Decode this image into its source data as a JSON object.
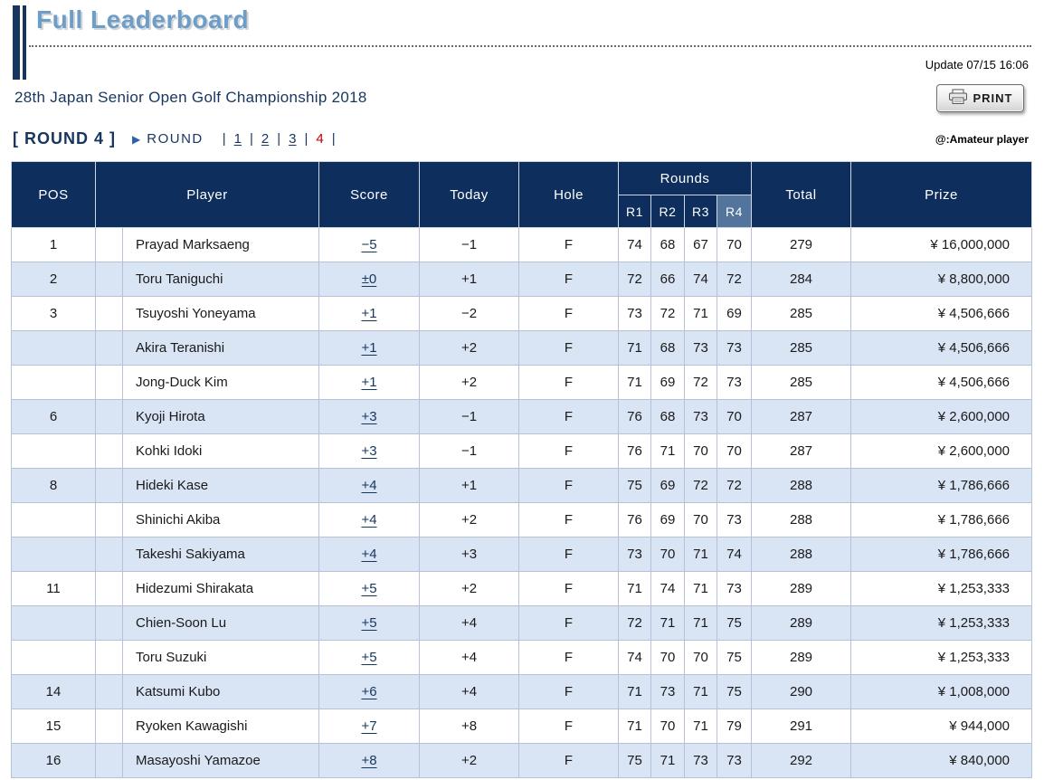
{
  "colors": {
    "navy": "#16365f",
    "header_bg": "#0e2f5e",
    "header_r4_bg": "#53749c",
    "row_alt": "#d9e4f4",
    "current_red": "#c00000",
    "title_blue": "#6d9ec9"
  },
  "page": {
    "title": "Full Leaderboard",
    "update_text": "Update 07/15 16:06",
    "tournament_title": "28th Japan Senior Open Golf Championship 2018",
    "amateur_note": "@:Amateur player"
  },
  "print_button": {
    "label": "PRINT"
  },
  "round_nav": {
    "bracket_label": "[ ROUND 4 ]",
    "arrow": "▶",
    "round_label": "ROUND",
    "separator": "|",
    "links": [
      {
        "label": "1",
        "current": false
      },
      {
        "label": "2",
        "current": false
      },
      {
        "label": "3",
        "current": false
      },
      {
        "label": "4",
        "current": true
      }
    ]
  },
  "table": {
    "headers": {
      "pos": "POS",
      "player": "Player",
      "score": "Score",
      "today": "Today",
      "hole": "Hole",
      "rounds": "Rounds",
      "r1": "R1",
      "r2": "R2",
      "r3": "R3",
      "r4": "R4",
      "total": "Total",
      "prize": "Prize"
    },
    "rows": [
      {
        "pos": "1",
        "player": "Prayad Marksaeng",
        "score": "−5",
        "today": "−1",
        "hole": "F",
        "r1": "74",
        "r2": "68",
        "r3": "67",
        "r4": "70",
        "total": "279",
        "prize": "¥ 16,000,000"
      },
      {
        "pos": "2",
        "player": "Toru Taniguchi",
        "score": "±0",
        "today": "+1",
        "hole": "F",
        "r1": "72",
        "r2": "66",
        "r3": "74",
        "r4": "72",
        "total": "284",
        "prize": "¥ 8,800,000"
      },
      {
        "pos": "3",
        "player": "Tsuyoshi Yoneyama",
        "score": "+1",
        "today": "−2",
        "hole": "F",
        "r1": "73",
        "r2": "72",
        "r3": "71",
        "r4": "69",
        "total": "285",
        "prize": "¥ 4,506,666"
      },
      {
        "pos": "",
        "player": "Akira Teranishi",
        "score": "+1",
        "today": "+2",
        "hole": "F",
        "r1": "71",
        "r2": "68",
        "r3": "73",
        "r4": "73",
        "total": "285",
        "prize": "¥ 4,506,666"
      },
      {
        "pos": "",
        "player": "Jong-Duck Kim",
        "score": "+1",
        "today": "+2",
        "hole": "F",
        "r1": "71",
        "r2": "69",
        "r3": "72",
        "r4": "73",
        "total": "285",
        "prize": "¥ 4,506,666"
      },
      {
        "pos": "6",
        "player": "Kyoji Hirota",
        "score": "+3",
        "today": "−1",
        "hole": "F",
        "r1": "76",
        "r2": "68",
        "r3": "73",
        "r4": "70",
        "total": "287",
        "prize": "¥ 2,600,000"
      },
      {
        "pos": "",
        "player": "Kohki Idoki",
        "score": "+3",
        "today": "−1",
        "hole": "F",
        "r1": "76",
        "r2": "71",
        "r3": "70",
        "r4": "70",
        "total": "287",
        "prize": "¥ 2,600,000"
      },
      {
        "pos": "8",
        "player": "Hideki Kase",
        "score": "+4",
        "today": "+1",
        "hole": "F",
        "r1": "75",
        "r2": "69",
        "r3": "72",
        "r4": "72",
        "total": "288",
        "prize": "¥ 1,786,666"
      },
      {
        "pos": "",
        "player": "Shinichi Akiba",
        "score": "+4",
        "today": "+2",
        "hole": "F",
        "r1": "76",
        "r2": "69",
        "r3": "70",
        "r4": "73",
        "total": "288",
        "prize": "¥ 1,786,666"
      },
      {
        "pos": "",
        "player": "Takeshi Sakiyama",
        "score": "+4",
        "today": "+3",
        "hole": "F",
        "r1": "73",
        "r2": "70",
        "r3": "71",
        "r4": "74",
        "total": "288",
        "prize": "¥ 1,786,666"
      },
      {
        "pos": "11",
        "player": "Hidezumi Shirakata",
        "score": "+5",
        "today": "+2",
        "hole": "F",
        "r1": "71",
        "r2": "74",
        "r3": "71",
        "r4": "73",
        "total": "289",
        "prize": "¥ 1,253,333"
      },
      {
        "pos": "",
        "player": "Chien-Soon Lu",
        "score": "+5",
        "today": "+4",
        "hole": "F",
        "r1": "72",
        "r2": "71",
        "r3": "71",
        "r4": "75",
        "total": "289",
        "prize": "¥ 1,253,333"
      },
      {
        "pos": "",
        "player": "Toru Suzuki",
        "score": "+5",
        "today": "+4",
        "hole": "F",
        "r1": "74",
        "r2": "70",
        "r3": "70",
        "r4": "75",
        "total": "289",
        "prize": "¥ 1,253,333"
      },
      {
        "pos": "14",
        "player": "Katsumi Kubo",
        "score": "+6",
        "today": "+4",
        "hole": "F",
        "r1": "71",
        "r2": "73",
        "r3": "71",
        "r4": "75",
        "total": "290",
        "prize": "¥ 1,008,000"
      },
      {
        "pos": "15",
        "player": "Ryoken Kawagishi",
        "score": "+7",
        "today": "+8",
        "hole": "F",
        "r1": "71",
        "r2": "70",
        "r3": "71",
        "r4": "79",
        "total": "291",
        "prize": "¥ 944,000"
      },
      {
        "pos": "16",
        "player": "Masayoshi Yamazoe",
        "score": "+8",
        "today": "+2",
        "hole": "F",
        "r1": "75",
        "r2": "71",
        "r3": "73",
        "r4": "73",
        "total": "292",
        "prize": "¥ 840,000"
      }
    ]
  }
}
